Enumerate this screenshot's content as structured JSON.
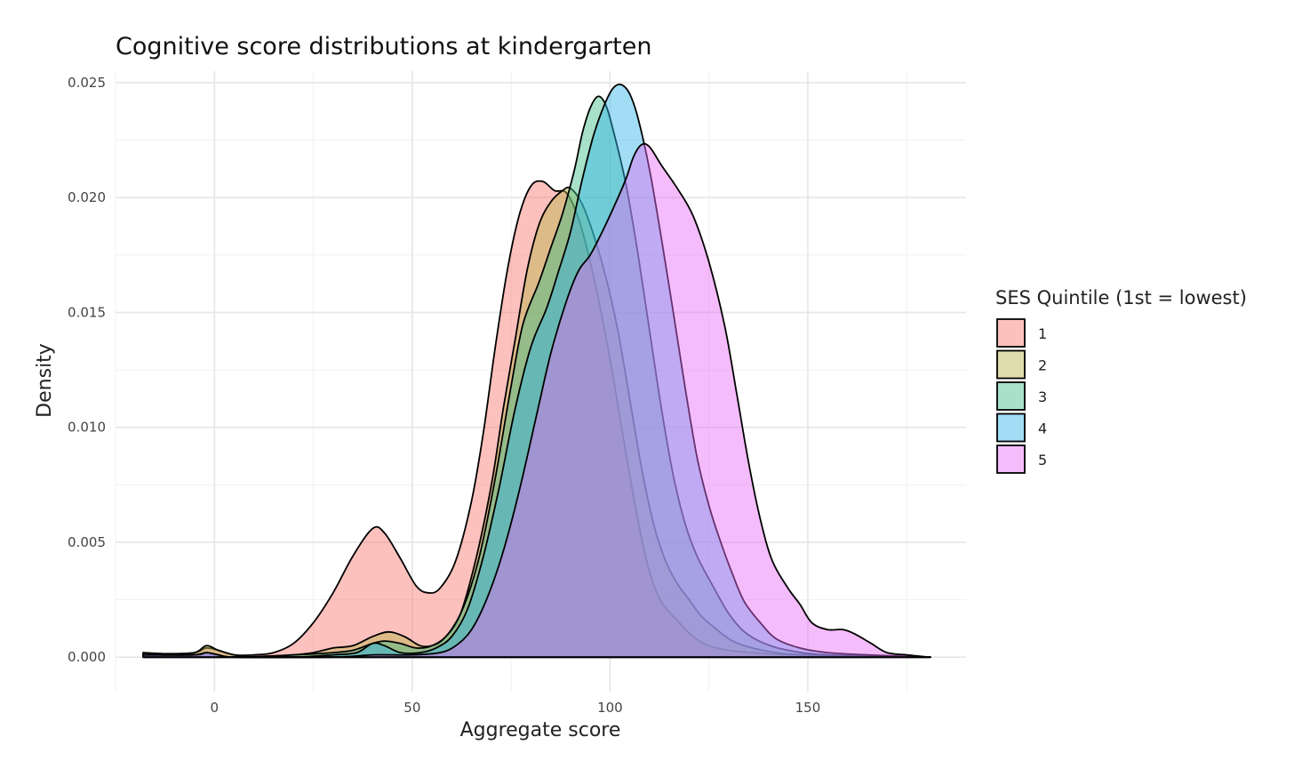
{
  "chart_data": {
    "type": "area",
    "title": "Cognitive score distributions at kindergarten",
    "xlabel": "Aggregate score",
    "ylabel": "Density",
    "xlim": [
      -25,
      190
    ],
    "ylim": [
      -0.0015,
      0.0255
    ],
    "x_ticks": [
      0,
      50,
      100,
      150
    ],
    "x_tick_labels": [
      "0",
      "50",
      "100",
      "150"
    ],
    "y_ticks": [
      0.0,
      0.005,
      0.01,
      0.015,
      0.02,
      0.025
    ],
    "y_tick_labels": [
      "0.000",
      "0.005",
      "0.010",
      "0.015",
      "0.020",
      "0.025"
    ],
    "grid": true,
    "legend": {
      "title": "SES Quintile (1st = lowest)",
      "position": "right"
    },
    "series": [
      {
        "name": "1",
        "color": "#F8766D",
        "points": [
          [
            -18,
            0.0002
          ],
          [
            -12,
            0.00015
          ],
          [
            -5,
            0.0002
          ],
          [
            -2,
            0.0004
          ],
          [
            1,
            0.0003
          ],
          [
            5,
            0.0001
          ],
          [
            10,
            0.0001
          ],
          [
            15,
            0.0002
          ],
          [
            20,
            0.0006
          ],
          [
            25,
            0.0015
          ],
          [
            30,
            0.0028
          ],
          [
            35,
            0.0044
          ],
          [
            40,
            0.0056
          ],
          [
            43,
            0.0054
          ],
          [
            47,
            0.0043
          ],
          [
            51,
            0.0031
          ],
          [
            54,
            0.0028
          ],
          [
            57,
            0.003
          ],
          [
            61,
            0.0042
          ],
          [
            65,
            0.0068
          ],
          [
            68,
            0.0098
          ],
          [
            71,
            0.0135
          ],
          [
            74,
            0.0168
          ],
          [
            77,
            0.0192
          ],
          [
            80,
            0.0205
          ],
          [
            83,
            0.0207
          ],
          [
            86,
            0.0203
          ],
          [
            89,
            0.0202
          ],
          [
            92,
            0.0191
          ],
          [
            95,
            0.0172
          ],
          [
            98,
            0.0148
          ],
          [
            101,
            0.012
          ],
          [
            104,
            0.0089
          ],
          [
            107,
            0.006
          ],
          [
            110,
            0.0037
          ],
          [
            113,
            0.0024
          ],
          [
            117,
            0.0016
          ],
          [
            121,
            0.0009
          ],
          [
            125,
            0.0005
          ],
          [
            130,
            0.0003
          ],
          [
            136,
            0.0002
          ],
          [
            145,
            0.0001
          ],
          [
            160,
            5e-05
          ],
          [
            181,
            0.0
          ]
        ]
      },
      {
        "name": "2",
        "color": "#B8B44A",
        "points": [
          [
            -18,
            0.0002
          ],
          [
            -12,
            0.0001
          ],
          [
            -5,
            0.0002
          ],
          [
            -2,
            0.0005
          ],
          [
            1,
            0.0003
          ],
          [
            5,
            0.0001
          ],
          [
            10,
            0.0
          ],
          [
            20,
            0.0001
          ],
          [
            25,
            0.0002
          ],
          [
            30,
            0.0004
          ],
          [
            35,
            0.0005
          ],
          [
            40,
            0.0009
          ],
          [
            44,
            0.0011
          ],
          [
            48,
            0.0009
          ],
          [
            52,
            0.0005
          ],
          [
            55,
            0.0005
          ],
          [
            58,
            0.0008
          ],
          [
            62,
            0.0018
          ],
          [
            66,
            0.0042
          ],
          [
            70,
            0.0075
          ],
          [
            73,
            0.0108
          ],
          [
            76,
            0.0138
          ],
          [
            79,
            0.0168
          ],
          [
            82,
            0.0188
          ],
          [
            85,
            0.0198
          ],
          [
            88,
            0.0203
          ],
          [
            90,
            0.0204
          ],
          [
            93,
            0.0197
          ],
          [
            96,
            0.0183
          ],
          [
            99,
            0.0165
          ],
          [
            102,
            0.0142
          ],
          [
            105,
            0.0112
          ],
          [
            108,
            0.0082
          ],
          [
            111,
            0.0058
          ],
          [
            114,
            0.0042
          ],
          [
            117,
            0.0032
          ],
          [
            120,
            0.0025
          ],
          [
            123,
            0.0018
          ],
          [
            127,
            0.0012
          ],
          [
            131,
            0.0007
          ],
          [
            136,
            0.0004
          ],
          [
            142,
            0.0002
          ],
          [
            150,
            0.0001
          ],
          [
            181,
            0.0
          ]
        ]
      },
      {
        "name": "3",
        "color": "#3EBC8A",
        "points": [
          [
            -18,
            0.0002
          ],
          [
            -12,
            0.0001
          ],
          [
            -5,
            0.0001
          ],
          [
            -2,
            0.0002
          ],
          [
            1,
            0.0001
          ],
          [
            5,
            0.0
          ],
          [
            20,
            0.0001
          ],
          [
            30,
            0.0002
          ],
          [
            35,
            0.0003
          ],
          [
            40,
            0.0006
          ],
          [
            43,
            0.0007
          ],
          [
            47,
            0.0006
          ],
          [
            51,
            0.0004
          ],
          [
            55,
            0.0005
          ],
          [
            59,
            0.001
          ],
          [
            63,
            0.0022
          ],
          [
            67,
            0.0044
          ],
          [
            71,
            0.0078
          ],
          [
            75,
            0.0118
          ],
          [
            78,
            0.0145
          ],
          [
            82,
            0.0163
          ],
          [
            85,
            0.0178
          ],
          [
            88,
            0.0193
          ],
          [
            91,
            0.0212
          ],
          [
            93,
            0.0228
          ],
          [
            95,
            0.0239
          ],
          [
            97,
            0.0244
          ],
          [
            99,
            0.024
          ],
          [
            101,
            0.0228
          ],
          [
            104,
            0.0206
          ],
          [
            107,
            0.0176
          ],
          [
            110,
            0.0142
          ],
          [
            113,
            0.0108
          ],
          [
            116,
            0.0079
          ],
          [
            119,
            0.0058
          ],
          [
            122,
            0.0044
          ],
          [
            126,
            0.0031
          ],
          [
            130,
            0.0019
          ],
          [
            134,
            0.0011
          ],
          [
            139,
            0.0006
          ],
          [
            145,
            0.0003
          ],
          [
            155,
            0.0001
          ],
          [
            181,
            0.0
          ]
        ]
      },
      {
        "name": "4",
        "color": "#2FB6E8",
        "points": [
          [
            -18,
            0.0001
          ],
          [
            -5,
            0.0001
          ],
          [
            -2,
            0.0002
          ],
          [
            1,
            0.0001
          ],
          [
            5,
            0.0
          ],
          [
            20,
            0.0
          ],
          [
            30,
            0.0001
          ],
          [
            36,
            0.0002
          ],
          [
            40,
            0.0006
          ],
          [
            43,
            0.0005
          ],
          [
            47,
            0.0002
          ],
          [
            52,
            0.0002
          ],
          [
            56,
            0.0004
          ],
          [
            60,
            0.0009
          ],
          [
            64,
            0.0021
          ],
          [
            68,
            0.0044
          ],
          [
            72,
            0.0074
          ],
          [
            76,
            0.0108
          ],
          [
            80,
            0.0135
          ],
          [
            84,
            0.0152
          ],
          [
            87,
            0.0168
          ],
          [
            90,
            0.0185
          ],
          [
            93,
            0.0208
          ],
          [
            96,
            0.0228
          ],
          [
            99,
            0.0242
          ],
          [
            101,
            0.0248
          ],
          [
            103,
            0.0249
          ],
          [
            105,
            0.0245
          ],
          [
            107,
            0.0235
          ],
          [
            110,
            0.0212
          ],
          [
            113,
            0.0182
          ],
          [
            116,
            0.015
          ],
          [
            119,
            0.0117
          ],
          [
            122,
            0.0087
          ],
          [
            125,
            0.0066
          ],
          [
            128,
            0.005
          ],
          [
            131,
            0.0036
          ],
          [
            134,
            0.0024
          ],
          [
            138,
            0.0015
          ],
          [
            142,
            0.0008
          ],
          [
            148,
            0.0004
          ],
          [
            155,
            0.0002
          ],
          [
            165,
            0.0001
          ],
          [
            181,
            0.0
          ]
        ]
      },
      {
        "name": "5",
        "color": "#E76BF3",
        "points": [
          [
            -18,
            0.0001
          ],
          [
            -5,
            0.0001
          ],
          [
            -2,
            0.0002
          ],
          [
            1,
            0.0001
          ],
          [
            5,
            0.0
          ],
          [
            30,
            0.0
          ],
          [
            40,
            0.0001
          ],
          [
            50,
            0.0001
          ],
          [
            57,
            0.0002
          ],
          [
            61,
            0.0005
          ],
          [
            65,
            0.0012
          ],
          [
            69,
            0.0026
          ],
          [
            73,
            0.0046
          ],
          [
            77,
            0.0072
          ],
          [
            81,
            0.0102
          ],
          [
            85,
            0.0132
          ],
          [
            89,
            0.0155
          ],
          [
            92,
            0.0168
          ],
          [
            95,
            0.0175
          ],
          [
            98,
            0.0185
          ],
          [
            101,
            0.0196
          ],
          [
            104,
            0.0208
          ],
          [
            106,
            0.0218
          ],
          [
            108,
            0.0223
          ],
          [
            110,
            0.0222
          ],
          [
            113,
            0.0214
          ],
          [
            117,
            0.0204
          ],
          [
            121,
            0.0192
          ],
          [
            125,
            0.0172
          ],
          [
            129,
            0.0144
          ],
          [
            132,
            0.0115
          ],
          [
            135,
            0.0085
          ],
          [
            138,
            0.006
          ],
          [
            141,
            0.0042
          ],
          [
            145,
            0.003
          ],
          [
            148,
            0.0023
          ],
          [
            151,
            0.0015
          ],
          [
            155,
            0.0012
          ],
          [
            159,
            0.0012
          ],
          [
            162,
            0.001
          ],
          [
            166,
            0.0006
          ],
          [
            170,
            0.0002
          ],
          [
            175,
            0.0001
          ],
          [
            181,
            0.0
          ]
        ]
      }
    ]
  }
}
